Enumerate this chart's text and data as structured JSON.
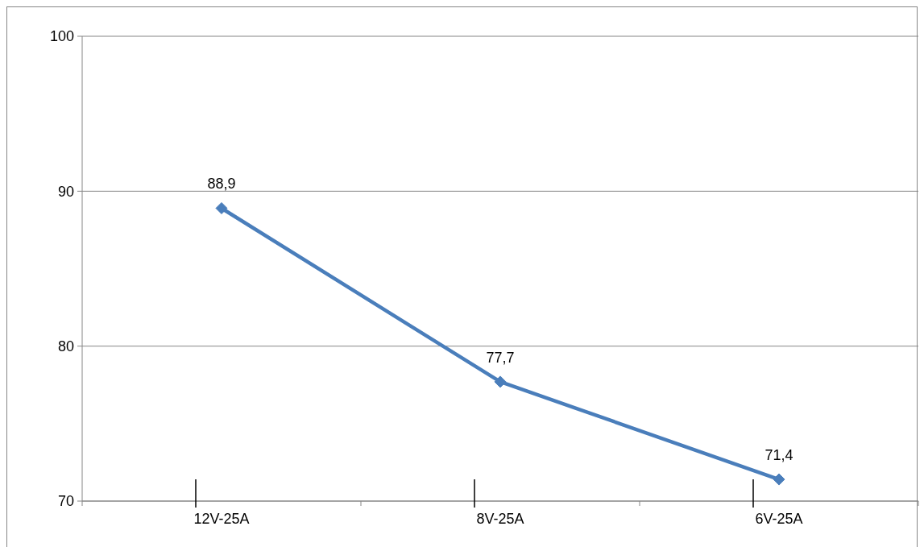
{
  "chart_data": {
    "type": "line",
    "categories": [
      "12V-25A",
      "8V-25A",
      "6V-25A"
    ],
    "series": [
      {
        "color": "#4a7ebb",
        "values": [
          88.9,
          77.7,
          71.4
        ]
      }
    ],
    "value_labels": [
      "88,9",
      "77,7",
      "71,4"
    ],
    "ylim": [
      70,
      100
    ],
    "yticks": [
      70,
      80,
      90,
      100
    ],
    "grid": "y",
    "marker": "diamond",
    "line_style": "solid"
  }
}
